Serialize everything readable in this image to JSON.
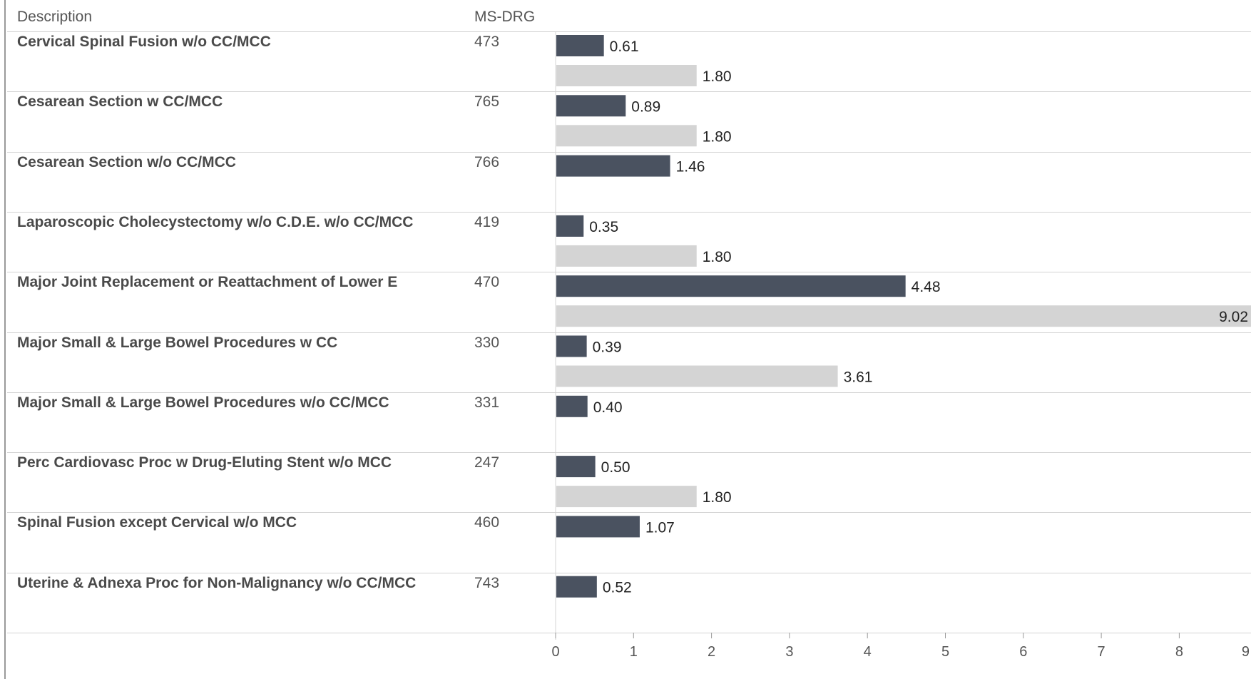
{
  "table": {
    "col_description": "Description",
    "col_msdrg": "MS-DRG"
  },
  "colors": {
    "dark_bar": "#4a5260",
    "light_bar": "#d4d4d4",
    "grid": "#d4d4d4"
  },
  "chart_data": {
    "type": "bar",
    "orientation": "horizontal",
    "categories": [
      {
        "description": "Cervical Spinal Fusion w/o CC/MCC",
        "ms_drg": "473"
      },
      {
        "description": "Cesarean Section w CC/MCC",
        "ms_drg": "765"
      },
      {
        "description": "Cesarean Section w/o CC/MCC",
        "ms_drg": "766"
      },
      {
        "description": "Laparoscopic Cholecystectomy w/o C.D.E. w/o CC/MCC",
        "ms_drg": "419"
      },
      {
        "description": "Major Joint Replacement or Reattachment of Lower E",
        "ms_drg": "470"
      },
      {
        "description": "Major Small & Large Bowel Procedures w CC",
        "ms_drg": "330"
      },
      {
        "description": "Major Small & Large Bowel Procedures w/o CC/MCC",
        "ms_drg": "331"
      },
      {
        "description": "Perc Cardiovasc Proc w Drug-Eluting Stent w/o MCC",
        "ms_drg": "247"
      },
      {
        "description": "Spinal Fusion except Cervical w/o MCC",
        "ms_drg": "460"
      },
      {
        "description": "Uterine & Adnexa Proc for Non-Malignancy w/o CC/MCC",
        "ms_drg": "743"
      }
    ],
    "series": [
      {
        "values": [
          0.61,
          0.89,
          1.46,
          0.35,
          4.48,
          0.39,
          0.4,
          0.5,
          1.07,
          0.52
        ],
        "labels": [
          "0.61",
          "0.89",
          "1.46",
          "0.35",
          "4.48",
          "0.39",
          "0.40",
          "0.50",
          "1.07",
          "0.52"
        ]
      },
      {
        "values": [
          1.8,
          1.8,
          null,
          1.8,
          9.02,
          3.61,
          null,
          1.8,
          null,
          null
        ],
        "labels": [
          "1.80",
          "1.80",
          null,
          "1.80",
          "9.02",
          "3.61",
          null,
          "1.80",
          null,
          null
        ]
      }
    ],
    "x_ticks": [
      "0",
      "1",
      "2",
      "3",
      "4",
      "5",
      "6",
      "7",
      "8",
      "9"
    ],
    "xlim": [
      0,
      9.2
    ],
    "grid": false
  }
}
